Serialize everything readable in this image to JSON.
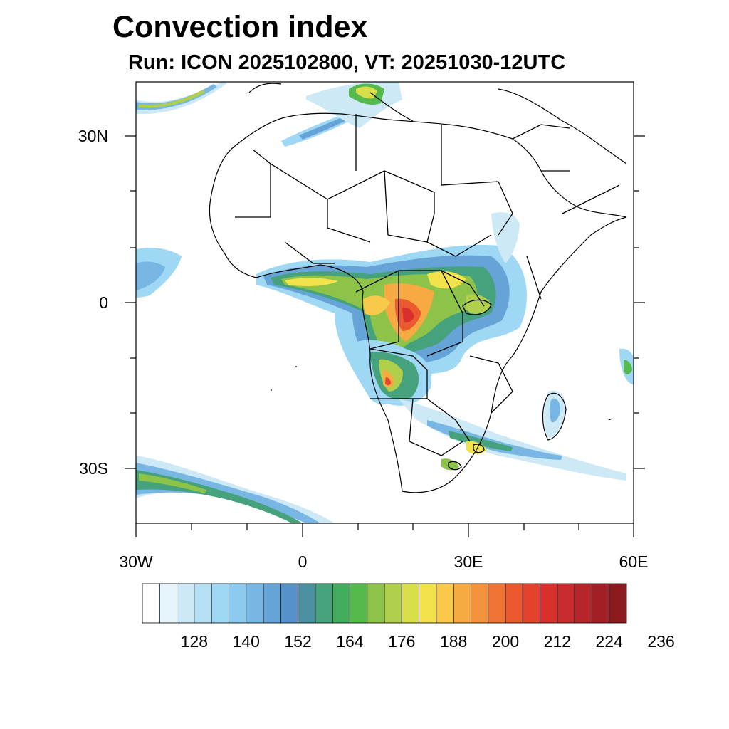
{
  "title": "Convection index",
  "subtitle": "Run: ICON 2025102800,  VT: 20251030-12UTC",
  "axes": {
    "lat_labels": [
      "30N",
      "0",
      "30S"
    ],
    "lon_labels": [
      "30W",
      "0",
      "30E",
      "60E"
    ],
    "lon_range_deg": [
      -30,
      60
    ],
    "lat_range_deg": [
      -40,
      40
    ]
  },
  "colorbar": {
    "tick_labels": [
      "128",
      "140",
      "152",
      "164",
      "176",
      "188",
      "200",
      "212",
      "224",
      "236"
    ],
    "colors": [
      "#ffffff",
      "#e6f4fb",
      "#cde9f6",
      "#b6e0f5",
      "#9fd8f4",
      "#8ccaef",
      "#78b7e4",
      "#66a4d8",
      "#5692c9",
      "#4a90a0",
      "#46a27c",
      "#44ad5c",
      "#55b94b",
      "#8dc349",
      "#b0cf4a",
      "#d8df4a",
      "#f2e34c",
      "#f8c94a",
      "#f6aa41",
      "#f4913b",
      "#f07435",
      "#eb5a2f",
      "#e3422c",
      "#d9302d",
      "#c92a2e",
      "#b5252a",
      "#a21f26",
      "#8a1a1e"
    ]
  }
}
